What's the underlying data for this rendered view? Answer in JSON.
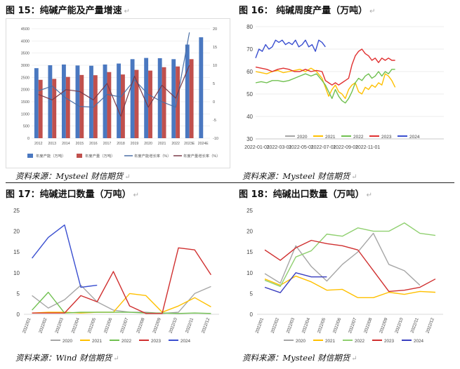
{
  "panels": {
    "p15": {
      "title": "图 15：纯碱产能及产量增速",
      "source": "资料来源：Mysteel 财信期货"
    },
    "p16": {
      "title": "图 16：  纯碱周度产量（万吨）",
      "source": "资料来源：Mysteel 财信期货"
    },
    "p17": {
      "title": "图 17：纯碱进口数量（万吨）",
      "source": "资料来源：Wind 财信期货"
    },
    "p18": {
      "title": "图 18：纯碱出口数量（万吨）",
      "source": "资料来源：Mysteel 财信期货"
    }
  },
  "chart_data": [
    {
      "id": "fig15",
      "type": "bar",
      "categories": [
        "2012",
        "2013",
        "2014",
        "2015",
        "2016",
        "2017",
        "2018",
        "2019",
        "2020",
        "2021",
        "2022",
        "2023E",
        "2024E"
      ],
      "ylim": [
        0,
        4500
      ],
      "y2lim": [
        -10,
        20
      ],
      "yticks": [
        0,
        500,
        1000,
        1500,
        2000,
        2500,
        3000,
        3500,
        4000,
        4500
      ],
      "y2ticks": [
        -10,
        -5,
        0,
        5,
        10,
        15,
        20
      ],
      "series": [
        {
          "name": "年度产能（万吨）",
          "kind": "bar",
          "axis": "left",
          "color": "#4a78c0",
          "values": [
            2880,
            3000,
            3030,
            2990,
            2980,
            3030,
            3070,
            3250,
            3300,
            3290,
            3250,
            3850,
            4150
          ]
        },
        {
          "name": "年度产量（万吨）",
          "kind": "bar",
          "axis": "left",
          "color": "#c0504d",
          "values": [
            2400,
            2440,
            2520,
            2600,
            2590,
            2720,
            2620,
            2810,
            2780,
            2920,
            2950,
            3250,
            null
          ]
        },
        {
          "name": "年度产能增长率（%）",
          "kind": "line",
          "axis": "right",
          "color": "#4a6fa5",
          "values": [
            3.0,
            4.3,
            1.0,
            -1.3,
            -1.5,
            2.0,
            1.3,
            6.0,
            2.0,
            0.0,
            -1.5,
            19.0,
            null
          ]
        },
        {
          "name": "年度产量增长率（%）",
          "kind": "line",
          "axis": "right",
          "color": "#7a3a48",
          "values": [
            2.0,
            0.5,
            3.3,
            2.8,
            0.5,
            5.0,
            -4.0,
            7.0,
            -1.5,
            4.5,
            1.0,
            10.0,
            null
          ]
        }
      ]
    },
    {
      "id": "fig16",
      "type": "line",
      "xlim": [
        0,
        17
      ],
      "ylim": [
        30,
        80
      ],
      "yticks": [
        30,
        40,
        50,
        60,
        70,
        80
      ],
      "xticks": [
        {
          "v": 0,
          "label": "2022-01-01"
        },
        {
          "v": 2,
          "label": "2022-03-01"
        },
        {
          "v": 4,
          "label": "2022-05-01"
        },
        {
          "v": 6,
          "label": "2022-07-01"
        },
        {
          "v": 8,
          "label": "2022-09-01"
        },
        {
          "v": 10,
          "label": "2022-11-01"
        }
      ],
      "series": [
        {
          "name": "2020",
          "color": "#a6a6a6",
          "x": [],
          "y": []
        },
        {
          "name": "2021",
          "color": "#ffc000",
          "x": [
            0.0,
            0.5,
            1.0,
            1.5,
            2.0,
            2.5,
            3.0,
            3.5,
            4.0,
            4.5,
            5.0,
            5.5,
            6.0,
            6.3,
            6.6,
            6.9,
            7.2,
            7.5,
            7.8,
            8.1,
            8.4,
            8.7,
            9.0,
            9.3,
            9.6,
            9.9,
            10.2,
            10.5,
            10.8,
            11.1,
            11.4,
            11.7,
            12.0,
            12.3,
            12.6
          ],
          "y": [
            60,
            59.5,
            59,
            60,
            60.5,
            59.5,
            60,
            60.5,
            61,
            60,
            61.5,
            60,
            57,
            53,
            49,
            52,
            54,
            51,
            50,
            48,
            52,
            54,
            55,
            51,
            50,
            53,
            52,
            54,
            53,
            55,
            54,
            59,
            58,
            56,
            53
          ]
        },
        {
          "name": "2022",
          "color": "#70c050",
          "x": [
            0.0,
            0.5,
            1.0,
            1.5,
            2.0,
            2.5,
            3.0,
            3.5,
            4.0,
            4.5,
            5.0,
            5.5,
            6.0,
            6.3,
            6.6,
            6.9,
            7.2,
            7.5,
            7.8,
            8.1,
            8.4,
            8.7,
            9.0,
            9.3,
            9.6,
            9.9,
            10.2,
            10.5,
            10.8,
            11.1,
            11.4,
            11.7,
            12.0,
            12.3,
            12.6
          ],
          "y": [
            55,
            55.5,
            55,
            56,
            56,
            55.5,
            56,
            57,
            58,
            59,
            58,
            59,
            56,
            54,
            51,
            48,
            52,
            49,
            47,
            46,
            48,
            51,
            55,
            57,
            56,
            58,
            59,
            57,
            58,
            60,
            58,
            60,
            59,
            61,
            61
          ]
        },
        {
          "name": "2023",
          "color": "#e03030",
          "x": [
            0.0,
            0.5,
            1.0,
            1.5,
            2.0,
            2.5,
            3.0,
            3.5,
            4.0,
            4.5,
            5.0,
            5.5,
            6.0,
            6.3,
            6.6,
            6.9,
            7.2,
            7.5,
            7.8,
            8.1,
            8.4,
            8.7,
            9.0,
            9.3,
            9.6,
            9.9,
            10.2,
            10.5,
            10.8,
            11.1,
            11.4,
            11.7,
            12.0,
            12.3,
            12.6
          ],
          "y": [
            62,
            61.5,
            61,
            60,
            61,
            61.5,
            61,
            60,
            60,
            61,
            60,
            60.5,
            60,
            56,
            55,
            54,
            55,
            54,
            55,
            56,
            57,
            63,
            67,
            69,
            70,
            68,
            67,
            65,
            66,
            64,
            66,
            65,
            66,
            65,
            65
          ]
        },
        {
          "name": "2024",
          "color": "#3a4fd0",
          "x": [
            0.0,
            0.3,
            0.6,
            0.9,
            1.2,
            1.5,
            1.8,
            2.1,
            2.4,
            2.7,
            3.0,
            3.3,
            3.6,
            3.9,
            4.2,
            4.5,
            4.8,
            5.1,
            5.4,
            5.7,
            6.0,
            6.3
          ],
          "y": [
            66,
            70,
            69,
            72,
            70,
            71,
            74,
            73,
            74,
            72,
            73,
            72,
            74,
            71,
            72,
            74,
            71,
            72,
            69,
            74,
            73,
            71
          ]
        }
      ]
    },
    {
      "id": "fig17",
      "type": "line",
      "categories": [
        "2022/01",
        "2022/02",
        "2022/03",
        "2022/04",
        "2022/05",
        "2022/06",
        "2022/07",
        "2022/08",
        "2022/09",
        "2022/10",
        "2022/11",
        "2022/12"
      ],
      "ylim": [
        0,
        25
      ],
      "yticks": [
        0,
        5,
        10,
        15,
        20,
        25
      ],
      "series": [
        {
          "name": "2020",
          "color": "#a6a6a6",
          "values": [
            4.5,
            1.5,
            3.5,
            7.0,
            3.0,
            1.0,
            0.5,
            0.5,
            0.2,
            0.5,
            5.0,
            6.7
          ]
        },
        {
          "name": "2021",
          "color": "#ffc000",
          "values": [
            0.3,
            0.5,
            0.5,
            0.3,
            0.5,
            0.5,
            5.0,
            4.5,
            0.5,
            2.0,
            4.0,
            1.8
          ]
        },
        {
          "name": "2022",
          "color": "#70c050",
          "values": [
            1.0,
            5.3,
            0.3,
            0.5,
            0.5,
            0.5,
            0.5,
            0.3,
            0.3,
            0.2,
            0.3,
            0.2
          ]
        },
        {
          "name": "2023",
          "color": "#d03030",
          "values": [
            0.3,
            0.3,
            0.3,
            4.5,
            3.0,
            10.3,
            2.0,
            0.2,
            0.2,
            16.0,
            15.5,
            9.5
          ]
        },
        {
          "name": "2024",
          "color": "#3a4fd0",
          "values": [
            13.5,
            18.5,
            21.5,
            6.5,
            7.0,
            null,
            null,
            null,
            null,
            null,
            null,
            null
          ]
        }
      ]
    },
    {
      "id": "fig18",
      "type": "line",
      "categories": [
        "2022/01",
        "2022/02",
        "2022/03",
        "2022/04",
        "2022/05",
        "2022/06",
        "2022/07",
        "2022/08",
        "2022/09",
        "2022/10",
        "2022/11",
        "2022/12"
      ],
      "ylim": [
        0,
        25
      ],
      "yticks": [
        0,
        5,
        10,
        15,
        20,
        25
      ],
      "series": [
        {
          "name": "2020",
          "color": "#a6a6a6",
          "values": [
            9.8,
            7.5,
            16.5,
            11.5,
            8.0,
            12.0,
            15.0,
            19.5,
            12.0,
            10.5,
            7.0,
            null
          ]
        },
        {
          "name": "2021",
          "color": "#ffc000",
          "values": [
            8.5,
            7.0,
            9.2,
            7.8,
            5.8,
            6.0,
            4.0,
            4.0,
            5.3,
            4.8,
            5.5,
            5.3
          ]
        },
        {
          "name": "2022",
          "color": "#90d070",
          "values": [
            8.2,
            6.7,
            13.8,
            15.3,
            19.3,
            18.8,
            20.8,
            20.0,
            20.0,
            22.0,
            19.5,
            19.0
          ]
        },
        {
          "name": "2023",
          "color": "#d03030",
          "values": [
            15.5,
            13.0,
            16.0,
            17.8,
            17.0,
            16.5,
            15.5,
            10.5,
            5.5,
            5.8,
            6.5,
            8.5
          ]
        },
        {
          "name": "2024",
          "color": "#3a3fc0",
          "values": [
            6.5,
            5.2,
            10.0,
            9.0,
            9.0,
            null,
            null,
            null,
            null,
            null,
            null,
            null
          ]
        }
      ]
    }
  ]
}
